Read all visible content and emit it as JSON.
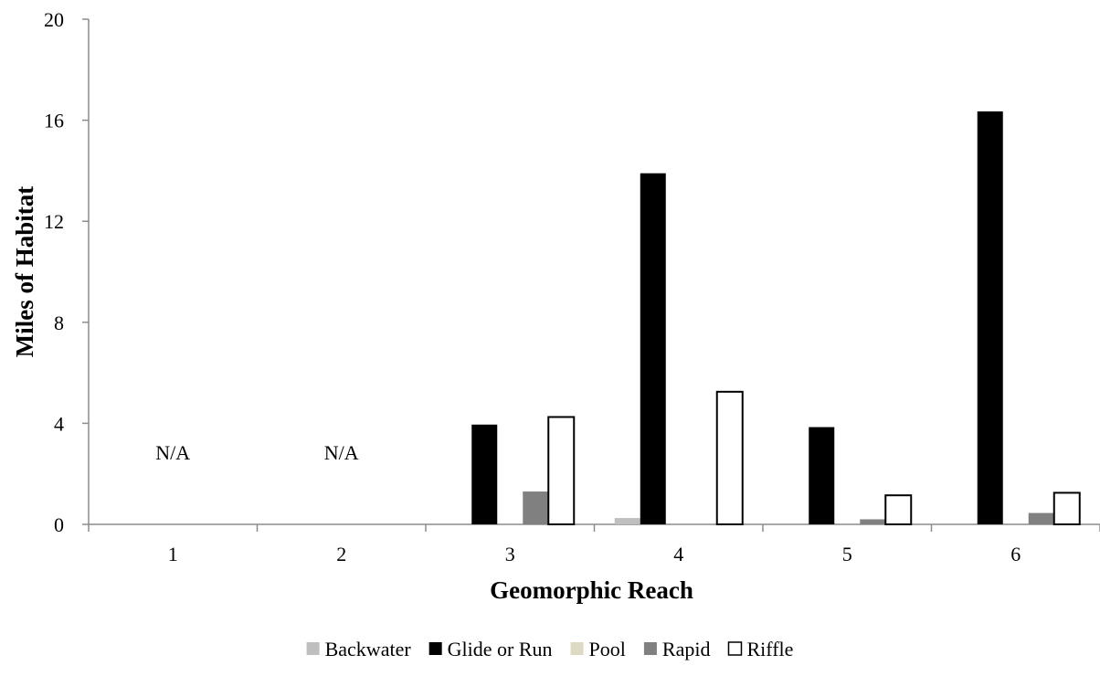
{
  "chart_data": {
    "type": "bar",
    "categories": [
      "1",
      "2",
      "3",
      "4",
      "5",
      "6"
    ],
    "series": [
      {
        "name": "Backwater",
        "color": "#bfbfbf",
        "values": [
          0,
          0,
          0,
          0.25,
          0,
          0
        ]
      },
      {
        "name": "Glide or Run",
        "color": "#000000",
        "values": [
          0,
          0,
          3.95,
          13.9,
          3.85,
          16.35
        ]
      },
      {
        "name": "Pool",
        "color": "#ddd9c3",
        "values": [
          0,
          0,
          0,
          0,
          0,
          0
        ]
      },
      {
        "name": "Rapid",
        "color": "#808080",
        "values": [
          0,
          0,
          1.3,
          0,
          0.2,
          0.45
        ]
      },
      {
        "name": "Riffle",
        "color": "#ffffff",
        "values": [
          0,
          0,
          4.25,
          5.25,
          1.15,
          1.25
        ]
      }
    ],
    "ylim": [
      0,
      20
    ],
    "yticks": [
      "0",
      "4",
      "8",
      "12",
      "16",
      "20"
    ],
    "xlabel": "Geomorphic Reach",
    "ylabel": "Miles of Habitat",
    "annotations": [
      {
        "category": "1",
        "text": "N/A"
      },
      {
        "category": "2",
        "text": "N/A"
      }
    ],
    "legend_position": "bottom",
    "grid": false
  }
}
